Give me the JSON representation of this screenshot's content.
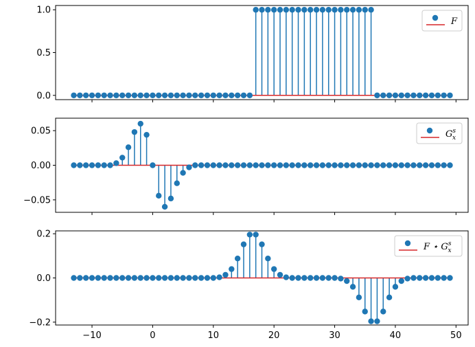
{
  "chart_data": [
    {
      "type": "stem",
      "legend": [
        {
          "label": "F",
          "label_main": "F",
          "label_sup": "",
          "label_sub": ""
        }
      ],
      "x_start": -13,
      "x_step": 1,
      "xlim": [
        -16,
        52
      ],
      "ylim": [
        -0.05,
        1.05
      ],
      "xticks": [
        -10,
        0,
        10,
        20,
        30,
        40,
        50
      ],
      "xtick_labels_visible": false,
      "yticks": [
        0.0,
        0.5,
        1.0
      ],
      "ytick_labels": [
        "0.0",
        "0.5",
        "1.0"
      ],
      "legend_position": "top-right",
      "marker_color": "#1f77b4",
      "baseline_color": "#d62728",
      "values": [
        0,
        0,
        0,
        0,
        0,
        0,
        0,
        0,
        0,
        0,
        0,
        0,
        0,
        0,
        0,
        0,
        0,
        0,
        0,
        0,
        0,
        0,
        0,
        0,
        0,
        0,
        0,
        0,
        0,
        0,
        1,
        1,
        1,
        1,
        1,
        1,
        1,
        1,
        1,
        1,
        1,
        1,
        1,
        1,
        1,
        1,
        1,
        1,
        1,
        1,
        0,
        0,
        0,
        0,
        0,
        0,
        0,
        0,
        0,
        0,
        0,
        0,
        0
      ]
    },
    {
      "type": "stem",
      "legend": [
        {
          "label": "G_x^s",
          "label_main": "G",
          "label_sup": "s",
          "label_sub": "x"
        }
      ],
      "x_start": -13,
      "x_step": 1,
      "xlim": [
        -16,
        52
      ],
      "ylim": [
        -0.068,
        0.068
      ],
      "xticks": [
        -10,
        0,
        10,
        20,
        30,
        40,
        50
      ],
      "xtick_labels_visible": false,
      "yticks": [
        -0.05,
        0.0,
        0.05
      ],
      "ytick_labels": [
        "−0.05",
        "0.00",
        "0.05"
      ],
      "legend_position": "top-right",
      "marker_color": "#1f77b4",
      "baseline_color": "#d62728",
      "values": [
        0,
        0,
        0,
        0,
        0,
        0,
        0,
        0.003,
        0.011,
        0.026,
        0.048,
        0.06,
        0.044,
        0,
        -0.044,
        -0.06,
        -0.048,
        -0.026,
        -0.011,
        -0.003,
        0,
        0,
        0,
        0,
        0,
        0,
        0,
        0,
        0,
        0,
        0,
        0,
        0,
        0,
        0,
        0,
        0,
        0,
        0,
        0,
        0,
        0,
        0,
        0,
        0,
        0,
        0,
        0,
        0,
        0,
        0,
        0,
        0,
        0,
        0,
        0,
        0,
        0,
        0,
        0,
        0,
        0,
        0
      ]
    },
    {
      "type": "stem",
      "legend": [
        {
          "label": "F ⋆ G_x^s",
          "label_main": "F ⋆ G",
          "label_sup": "s",
          "label_sub": "x"
        }
      ],
      "x_start": -13,
      "x_step": 1,
      "xlim": [
        -16,
        52
      ],
      "ylim": [
        -0.213,
        0.213
      ],
      "xticks": [
        -10,
        0,
        10,
        20,
        30,
        40,
        50
      ],
      "xtick_labels_visible": true,
      "xtick_labels": [
        "−10",
        "0",
        "10",
        "20",
        "30",
        "40",
        "50"
      ],
      "yticks": [
        -0.2,
        0.0,
        0.2
      ],
      "ytick_labels": [
        "−0.2",
        "0.0",
        "0.2"
      ],
      "legend_position": "top-right",
      "marker_color": "#1f77b4",
      "baseline_color": "#d62728",
      "values": [
        0,
        0,
        0,
        0,
        0,
        0,
        0,
        0,
        0,
        0,
        0,
        0,
        0,
        0,
        0,
        0,
        0,
        0,
        0,
        0,
        0,
        0,
        0,
        0,
        0.003,
        0.014,
        0.04,
        0.088,
        0.152,
        0.196,
        0.196,
        0.152,
        0.088,
        0.04,
        0.014,
        0.003,
        0,
        0,
        0,
        0,
        0,
        0,
        0,
        0,
        -0.003,
        -0.014,
        -0.04,
        -0.088,
        -0.152,
        -0.196,
        -0.196,
        -0.152,
        -0.088,
        -0.04,
        -0.014,
        -0.003,
        0,
        0,
        0,
        0,
        0,
        0,
        0
      ]
    }
  ]
}
